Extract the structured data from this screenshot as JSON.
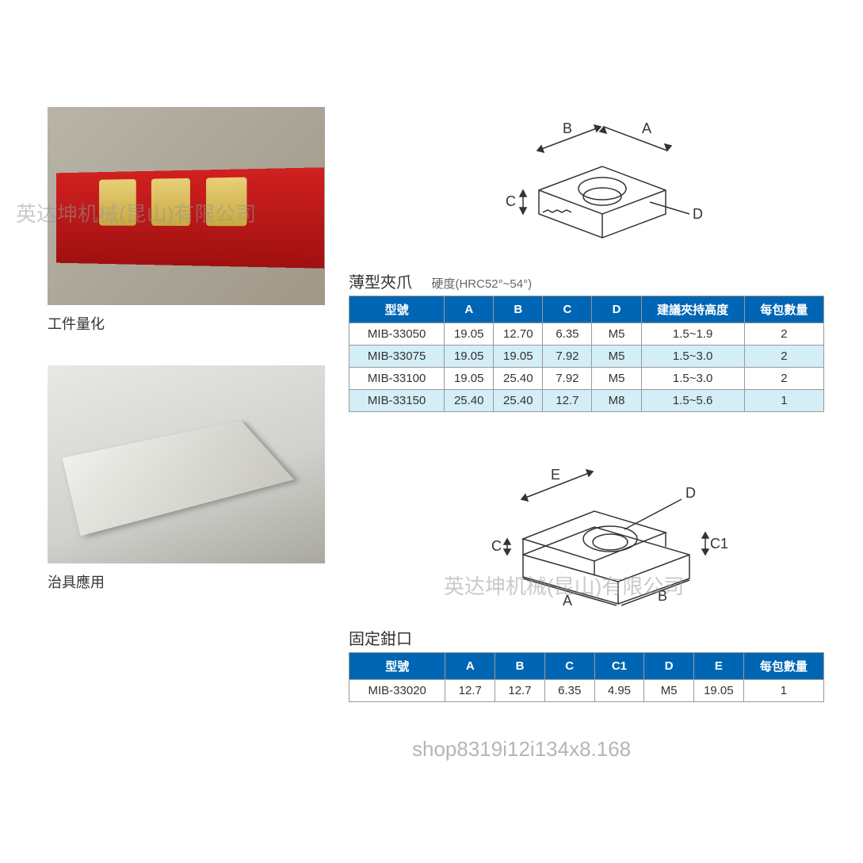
{
  "left": {
    "caption1": "工件量化",
    "caption2": "治具應用"
  },
  "watermarks": {
    "wm1": "英达坤机械(昆山)有限公司",
    "wm2": "英达坤机械(昆山)有限公司",
    "wm3": "shop8319i12i134x8.168"
  },
  "table1": {
    "title": "薄型夾爪",
    "subtitle": "硬度(HRC52°~54°)",
    "columns": [
      "型號",
      "A",
      "B",
      "C",
      "D",
      "建議夾持高度",
      "每包數量"
    ],
    "col_widths": [
      "120px",
      "62px",
      "62px",
      "62px",
      "62px",
      "130px",
      "100px"
    ],
    "rows": [
      {
        "cells": [
          "MIB-33050",
          "19.05",
          "12.70",
          "6.35",
          "M5",
          "1.5~1.9",
          "2"
        ],
        "alt": false
      },
      {
        "cells": [
          "MIB-33075",
          "19.05",
          "19.05",
          "7.92",
          "M5",
          "1.5~3.0",
          "2"
        ],
        "alt": true
      },
      {
        "cells": [
          "MIB-33100",
          "19.05",
          "25.40",
          "7.92",
          "M5",
          "1.5~3.0",
          "2"
        ],
        "alt": false
      },
      {
        "cells": [
          "MIB-33150",
          "25.40",
          "25.40",
          "12.7",
          "M8",
          "1.5~5.6",
          "1"
        ],
        "alt": true
      }
    ],
    "header_bg": "#0066b3",
    "alt_bg": "#d4eef7"
  },
  "table2": {
    "title": "固定鉗口",
    "columns": [
      "型號",
      "A",
      "B",
      "C",
      "C1",
      "D",
      "E",
      "每包數量"
    ],
    "col_widths": [
      "120px",
      "62px",
      "62px",
      "62px",
      "62px",
      "62px",
      "62px",
      "100px"
    ],
    "rows": [
      {
        "cells": [
          "MIB-33020",
          "12.7",
          "12.7",
          "6.35",
          "4.95",
          "M5",
          "19.05",
          "1"
        ],
        "alt": false
      }
    ]
  },
  "diagram1": {
    "labels": {
      "A": "A",
      "B": "B",
      "C": "C",
      "D": "D"
    }
  },
  "diagram2": {
    "labels": {
      "A": "A",
      "B": "B",
      "C": "C",
      "C1": "C1",
      "D": "D",
      "E": "E"
    }
  }
}
